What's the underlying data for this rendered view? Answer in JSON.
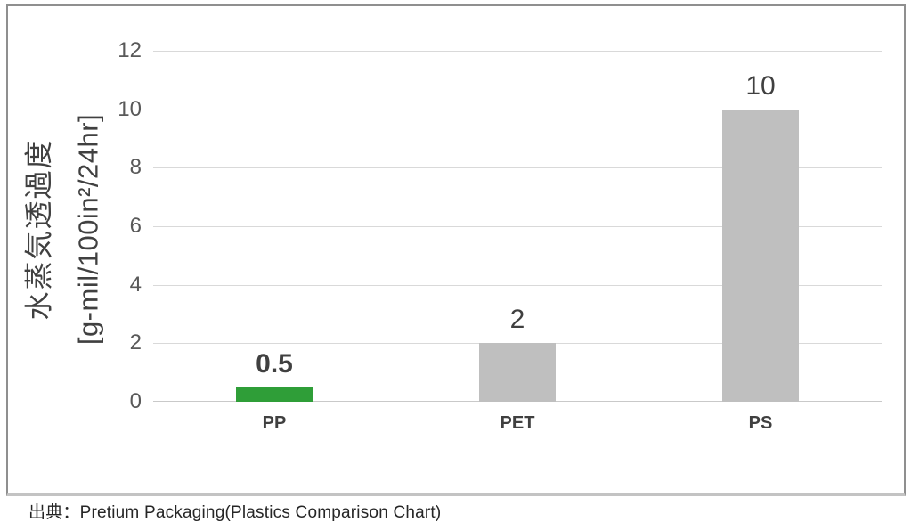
{
  "chart_data": {
    "type": "bar",
    "title": "",
    "categories": [
      "PP",
      "PET",
      "PS"
    ],
    "values": [
      0.5,
      2,
      10
    ],
    "bars": [
      {
        "category": "PP",
        "value": 0.5,
        "label": "0.5",
        "color": "#2f9e38",
        "label_bold": true
      },
      {
        "category": "PET",
        "value": 2,
        "label": "2",
        "color": "#bfbfbf",
        "label_bold": false
      },
      {
        "category": "PS",
        "value": 10,
        "label": "10",
        "color": "#bfbfbf",
        "label_bold": false
      }
    ],
    "ylabel_line1": "水蒸気透過度",
    "ylabel_line2": "[g-mil/100in²/24hr]",
    "ylim": [
      0,
      12
    ],
    "yticks": [
      "12",
      "10",
      "8",
      "6",
      "4",
      "2",
      "0"
    ],
    "grid": "horizontal",
    "legend": "none"
  },
  "source_note": "出典：Pretium Packaging(Plastics Comparison Chart)",
  "colors": {
    "highlight_green": "#2f9e38",
    "bar_gray": "#bfbfbf",
    "gridline": "#d9d9d9",
    "value_text": "#404040",
    "tick_text": "#595959",
    "frame_border": "#8f8f8f"
  }
}
